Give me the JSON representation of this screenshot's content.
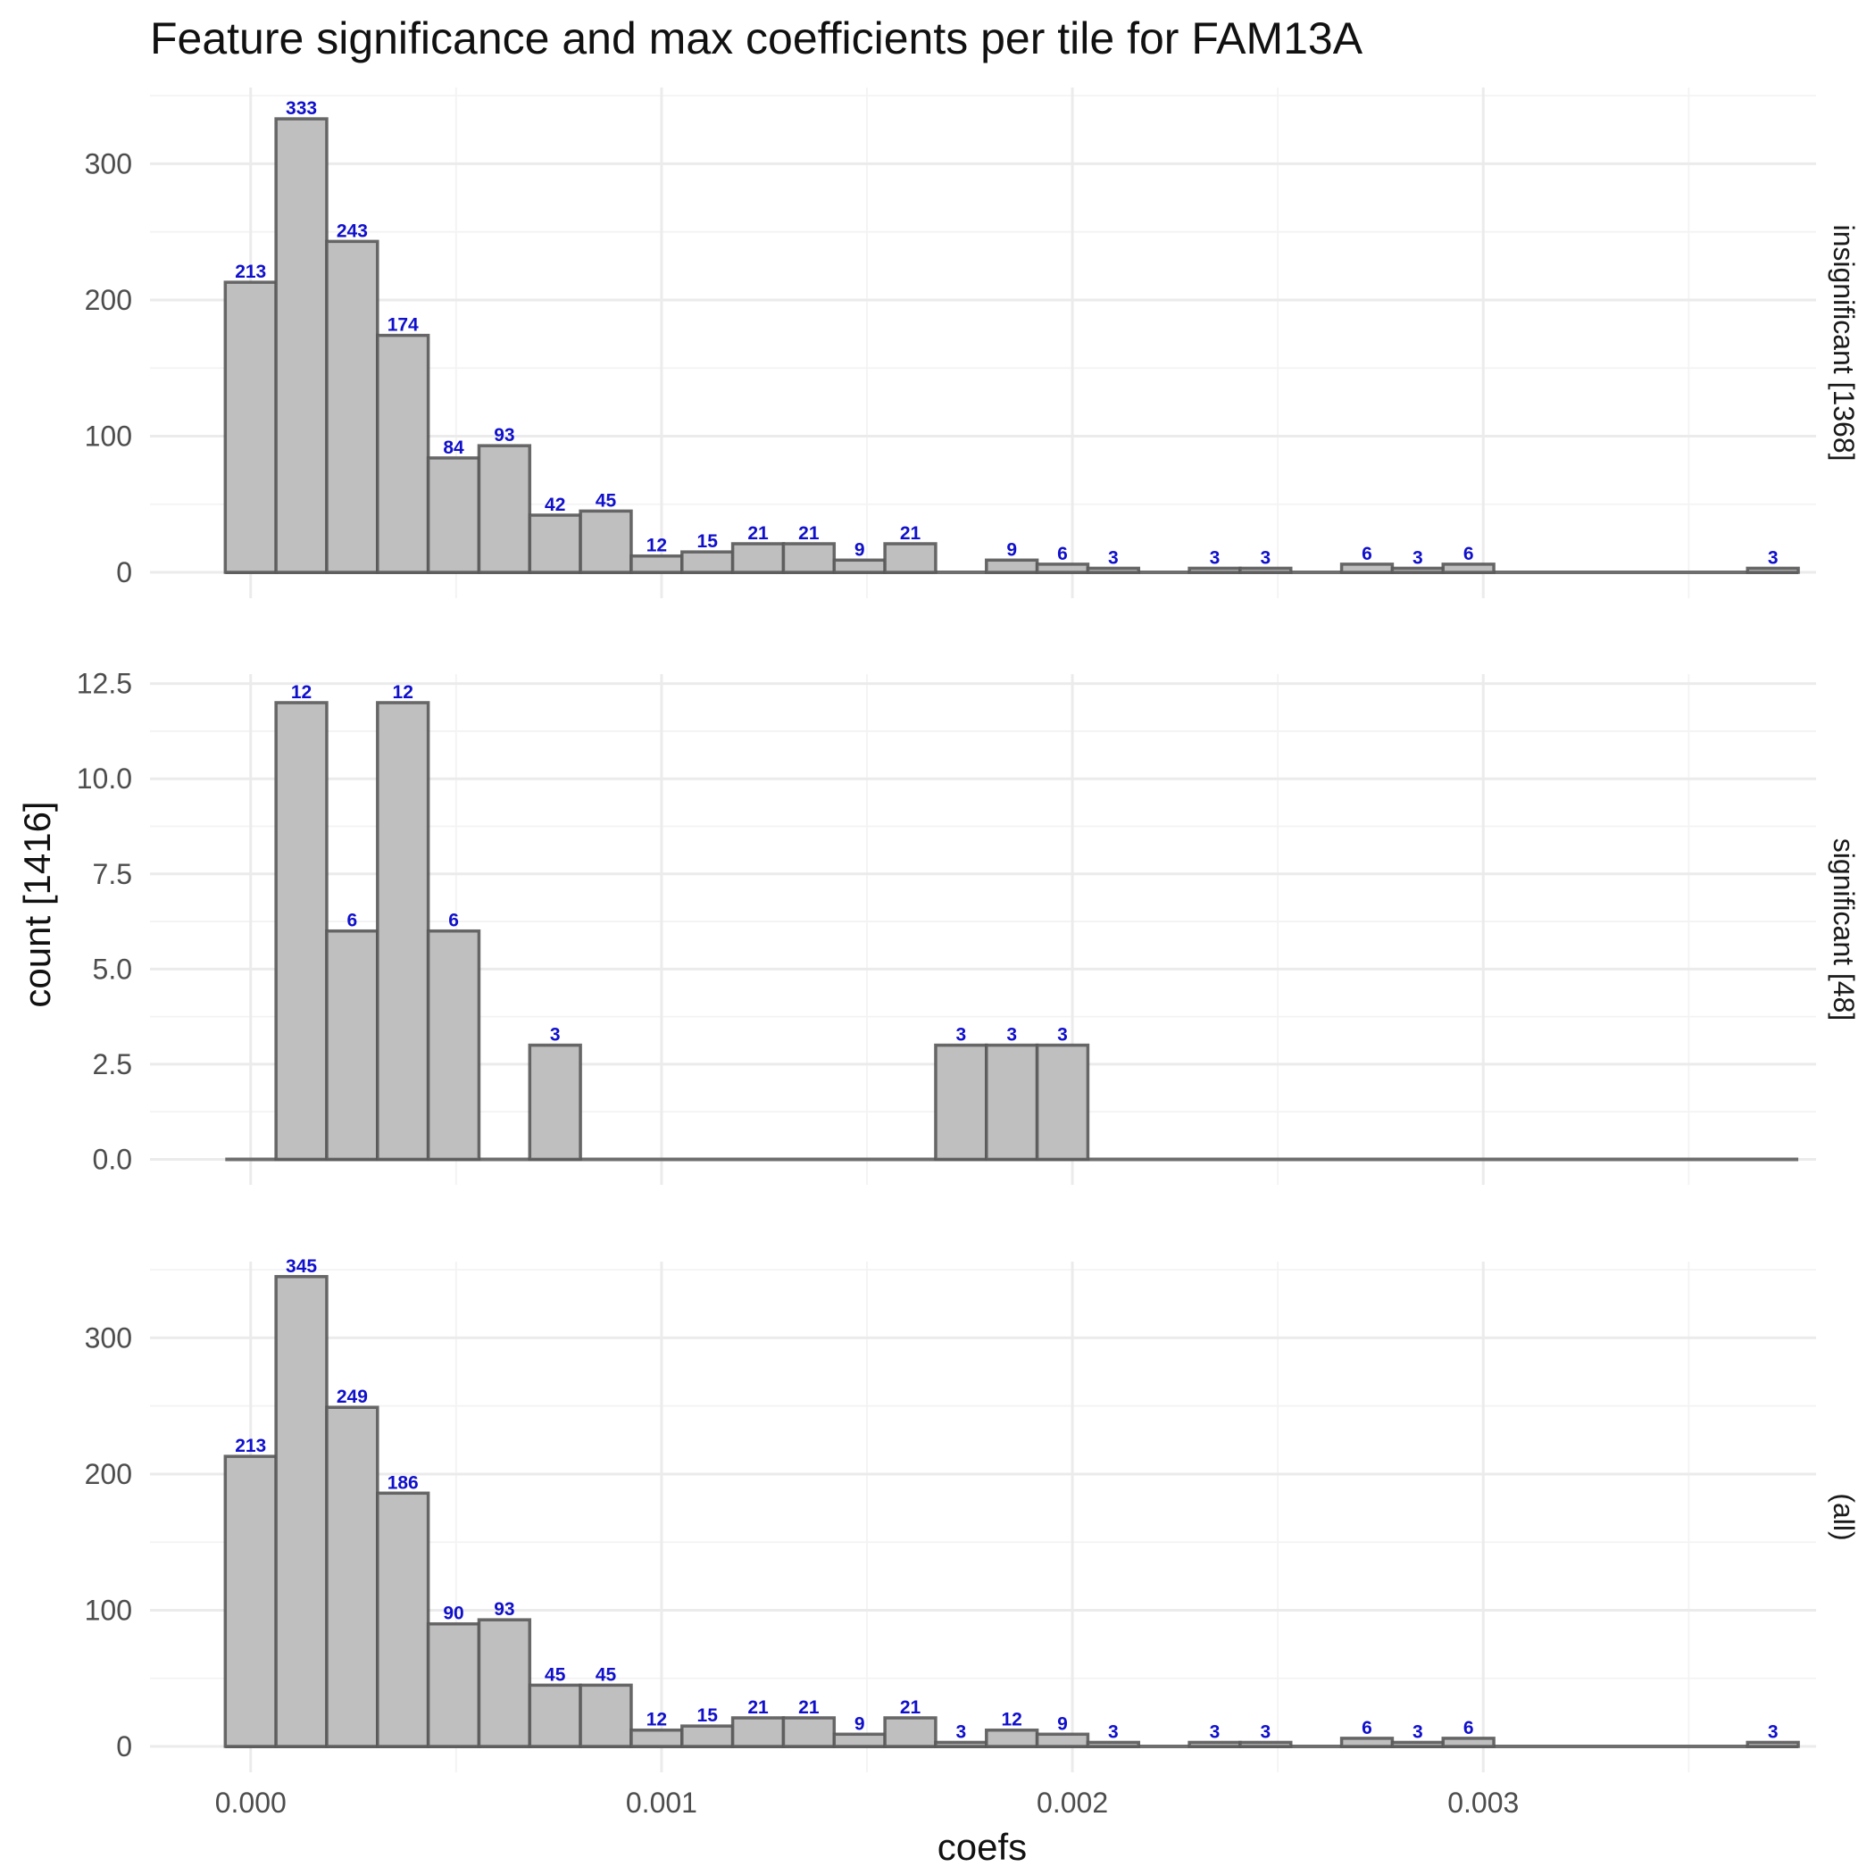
{
  "chart_data": {
    "type": "bar",
    "title": "Feature significance and max coefficients per tile for FAM13A",
    "xlabel": "coefs",
    "ylabel": "count [1416]",
    "xlim": [
      -0.000245,
      0.00381
    ],
    "x_ticks": [
      0,
      0.001,
      0.002,
      0.003
    ],
    "x_tick_labels": [
      "0.000",
      "0.001",
      "0.002",
      "0.003"
    ],
    "bin_width": 0.0001235,
    "bin_start": -6.18e-05,
    "grid": true,
    "label_color": "#1010cc",
    "bar_fill": "#bfbfbf",
    "facets": [
      {
        "strip": "insignificant [1368]",
        "ylim": [
          -19,
          356
        ],
        "y_ticks": [
          0,
          100,
          200,
          300
        ],
        "y_tick_labels": [
          "0",
          "100",
          "200",
          "300"
        ],
        "counts": [
          213,
          333,
          243,
          174,
          84,
          93,
          42,
          45,
          12,
          15,
          21,
          21,
          9,
          21,
          0,
          9,
          6,
          3,
          0,
          3,
          3,
          0,
          6,
          3,
          6,
          0,
          0,
          0,
          0,
          0,
          3
        ],
        "labels": [
          "213",
          "333",
          "243",
          "174",
          "84",
          "93",
          "42",
          "45",
          "12",
          "15",
          "21",
          "21",
          "9",
          "21",
          "",
          "9",
          "6",
          "3",
          "",
          "3",
          "3",
          "",
          "6",
          "3",
          "6",
          "",
          "",
          "",
          "",
          "",
          "3"
        ]
      },
      {
        "strip": "significant [48]",
        "ylim": [
          -0.67,
          12.75
        ],
        "y_ticks": [
          0,
          2.5,
          5,
          7.5,
          10,
          12.5
        ],
        "y_tick_labels": [
          "0.0",
          "2.5",
          "5.0",
          "7.5",
          "10.0",
          "12.5"
        ],
        "counts": [
          0,
          12,
          6,
          12,
          6,
          0,
          3,
          0,
          0,
          0,
          0,
          0,
          0,
          0,
          3,
          3,
          3,
          0,
          0,
          0,
          0,
          0,
          0,
          0,
          0,
          0,
          0,
          0,
          0,
          0,
          0
        ],
        "labels": [
          "",
          "12",
          "6",
          "12",
          "6",
          "",
          "3",
          "",
          "",
          "",
          "",
          "",
          "",
          "",
          "3",
          "3",
          "3",
          "",
          "",
          "",
          "",
          "",
          "",
          "",
          "",
          "",
          "",
          "",
          "",
          "",
          ""
        ]
      },
      {
        "strip": "(all)",
        "ylim": [
          -19,
          356
        ],
        "y_ticks": [
          0,
          100,
          200,
          300
        ],
        "y_tick_labels": [
          "0",
          "100",
          "200",
          "300"
        ],
        "counts": [
          213,
          345,
          249,
          186,
          90,
          93,
          45,
          45,
          12,
          15,
          21,
          21,
          9,
          21,
          3,
          12,
          9,
          3,
          0,
          3,
          3,
          0,
          6,
          3,
          6,
          0,
          0,
          0,
          0,
          0,
          3
        ],
        "labels": [
          "213",
          "345",
          "249",
          "186",
          "90",
          "93",
          "45",
          "45",
          "12",
          "15",
          "21",
          "21",
          "9",
          "21",
          "3",
          "12",
          "9",
          "3",
          "",
          "3",
          "3",
          "",
          "6",
          "3",
          "6",
          "",
          "",
          "",
          "",
          "",
          "3"
        ]
      }
    ]
  }
}
